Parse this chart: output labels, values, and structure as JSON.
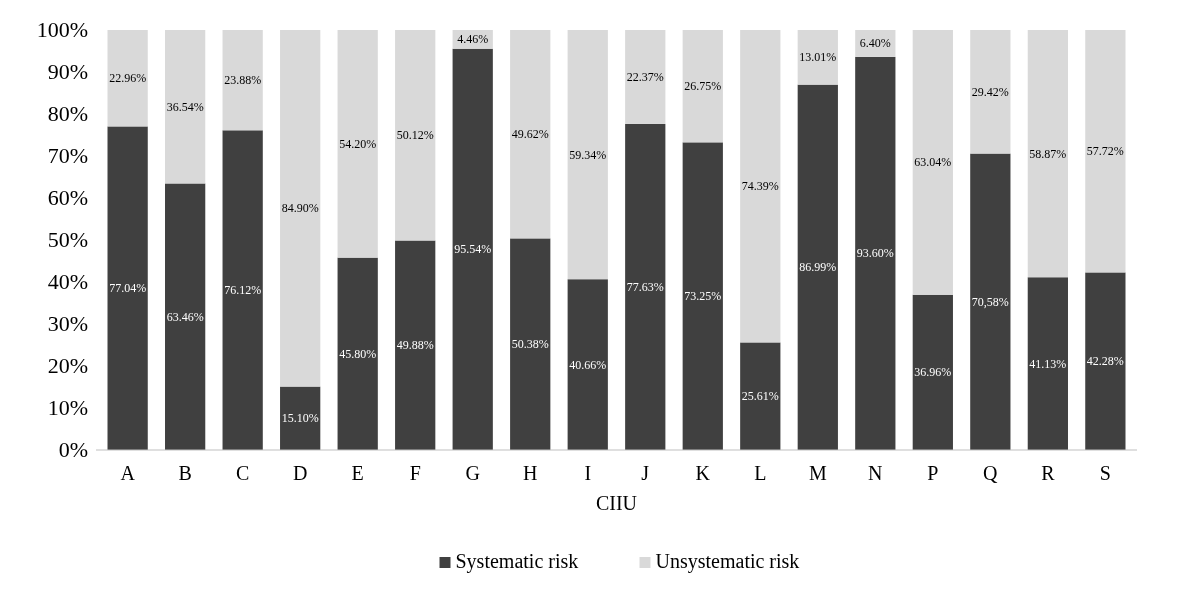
{
  "chart_data": {
    "type": "bar",
    "stacked": true,
    "xlabel": "CIIU",
    "categories": [
      "A",
      "B",
      "C",
      "D",
      "E",
      "F",
      "G",
      "H",
      "I",
      "J",
      "K",
      "L",
      "M",
      "N",
      "P",
      "Q",
      "R",
      "S"
    ],
    "series": [
      {
        "name": "Systematic risk",
        "color": "#404040",
        "values": [
          77.04,
          63.46,
          76.12,
          15.1,
          45.8,
          49.88,
          95.54,
          50.38,
          40.66,
          77.63,
          73.25,
          25.61,
          86.99,
          93.6,
          36.96,
          70.58,
          41.13,
          42.28
        ],
        "value_labels": [
          "77.04%",
          "63.46%",
          "76.12%",
          "15.10%",
          "45.80%",
          "49.88%",
          "95.54%",
          "50.38%",
          "40.66%",
          "77.63%",
          "73.25%",
          "25.61%",
          "86.99%",
          "93.60%",
          "36.96%",
          "70,58%",
          "41.13%",
          "42.28%"
        ]
      },
      {
        "name": "Unsystematic risk",
        "color": "#d9d9d9",
        "values": [
          22.96,
          36.54,
          23.88,
          84.9,
          54.2,
          50.12,
          4.46,
          49.62,
          59.34,
          22.37,
          26.75,
          74.39,
          13.01,
          6.4,
          63.04,
          29.42,
          58.87,
          57.72
        ],
        "value_labels": [
          "22.96%",
          "36.54%",
          "23.88%",
          "84.90%",
          "54.20%",
          "50.12%",
          "4.46%",
          "49.62%",
          "59.34%",
          "22.37%",
          "26.75%",
          "74.39%",
          "13.01%",
          "6.40%",
          "63.04%",
          "29.42%",
          "58.87%",
          "57.72%"
        ]
      }
    ],
    "ylim": [
      0,
      100
    ],
    "yticks": [
      {
        "value": 0,
        "label": "0%"
      },
      {
        "value": 10,
        "label": "10%"
      },
      {
        "value": 20,
        "label": "20%"
      },
      {
        "value": 30,
        "label": "30%"
      },
      {
        "value": 40,
        "label": "40%"
      },
      {
        "value": 50,
        "label": "50%"
      },
      {
        "value": 60,
        "label": "60%"
      },
      {
        "value": 70,
        "label": "70%"
      },
      {
        "value": 80,
        "label": "80%"
      },
      {
        "value": 90,
        "label": "90%"
      },
      {
        "value": 100,
        "label": "100%"
      }
    ],
    "legend": "bottom"
  }
}
